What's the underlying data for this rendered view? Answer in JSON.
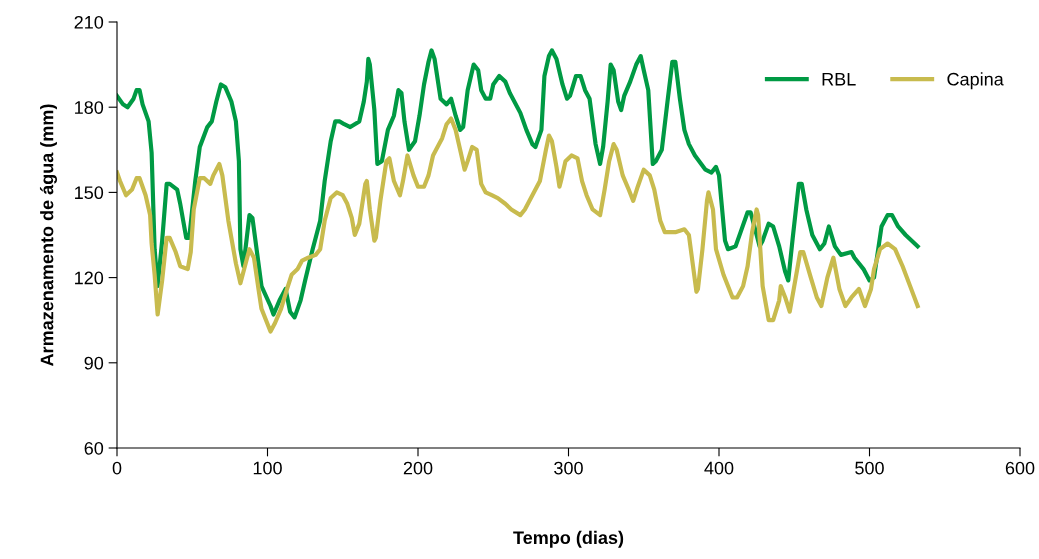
{
  "chart_data": {
    "type": "line",
    "xlabel": "Tempo (dias)",
    "ylabel": "Armazenamento de água (mm)",
    "xlim": [
      0,
      600
    ],
    "xticks": [
      0,
      100,
      200,
      300,
      400,
      500,
      600
    ],
    "ylim": [
      60,
      210
    ],
    "yticks": [
      60,
      90,
      120,
      150,
      180,
      210
    ],
    "grid": false,
    "legend": "top right",
    "marker": "none",
    "line_style": "solid",
    "series": [
      {
        "name": "RBL",
        "color": "#009a44",
        "x": [
          0,
          4,
          7,
          11,
          13,
          15,
          17,
          21,
          23,
          25,
          27,
          30,
          33,
          35,
          40,
          42,
          46,
          48,
          52,
          55,
          60,
          63,
          66,
          69,
          72,
          76,
          79,
          81,
          82,
          84,
          86,
          88,
          90,
          93,
          96,
          102,
          104,
          108,
          112,
          115,
          118,
          122,
          125,
          130,
          135,
          138,
          142,
          145,
          148,
          151,
          155,
          158,
          161,
          164,
          166,
          167,
          168,
          171,
          173,
          176,
          180,
          184,
          187,
          189,
          191,
          194,
          198,
          201,
          204,
          207,
          209,
          211,
          215,
          219,
          222,
          225,
          228,
          230,
          233,
          237,
          240,
          242,
          245,
          248,
          250,
          254,
          258,
          261,
          268,
          272,
          276,
          278,
          282,
          284,
          287,
          289,
          292,
          296,
          299,
          301,
          305,
          308,
          311,
          314,
          318,
          321,
          323,
          326,
          328,
          330,
          333,
          335,
          337,
          341,
          345,
          348,
          350,
          353,
          356,
          358,
          362,
          366,
          369,
          371,
          374,
          377,
          380,
          384,
          391,
          395,
          398,
          400,
          404,
          406,
          411,
          415,
          419,
          421,
          424,
          427,
          429,
          433,
          436,
          440,
          444,
          446,
          449,
          453,
          455,
          458,
          462,
          467,
          470,
          473,
          477,
          481,
          488,
          490,
          496,
          500,
          503,
          508,
          512,
          515,
          519,
          524,
          532
        ],
        "values": [
          184,
          181,
          180,
          183,
          186,
          186,
          181,
          175,
          164,
          130,
          117,
          133,
          153,
          153,
          151,
          146,
          134,
          134,
          154,
          166,
          173,
          175,
          182,
          188,
          187,
          182,
          175,
          161,
          130,
          124,
          133,
          142,
          141,
          129,
          117,
          110,
          107,
          112,
          116,
          108,
          106,
          112,
          119,
          130,
          140,
          154,
          168,
          175,
          175,
          174,
          173,
          174,
          175,
          182,
          189,
          197,
          195,
          179,
          160,
          161,
          172,
          177,
          186,
          185,
          175,
          165,
          168,
          177,
          188,
          196,
          200,
          197,
          183,
          181,
          183,
          177,
          172,
          173,
          186,
          195,
          193,
          186,
          183,
          183,
          188,
          191,
          189,
          185,
          178,
          172,
          167,
          166,
          172,
          191,
          198,
          200,
          197,
          188,
          183,
          184,
          191,
          191,
          186,
          183,
          167,
          160,
          166,
          182,
          195,
          193,
          182,
          179,
          184,
          189,
          195,
          198,
          193,
          186,
          160,
          161,
          165,
          183,
          196,
          196,
          183,
          172,
          167,
          163,
          158,
          157,
          159,
          156,
          133,
          130,
          131,
          137,
          143,
          143,
          137,
          131,
          133,
          139,
          138,
          131,
          122,
          119,
          134,
          153,
          153,
          144,
          135,
          130,
          132,
          138,
          131,
          128,
          129,
          127,
          123,
          119,
          120,
          138,
          142,
          142,
          138,
          135,
          131
        ]
      },
      {
        "name": "Capina",
        "color": "#c8bb4e",
        "x": [
          0,
          2,
          6,
          10,
          13,
          15,
          19,
          22,
          23,
          25,
          27,
          30,
          33,
          35,
          39,
          42,
          47,
          49,
          51,
          55,
          58,
          62,
          64,
          68,
          70,
          74,
          79,
          82,
          86,
          88,
          91,
          94,
          96,
          102,
          105,
          109,
          113,
          116,
          120,
          123,
          127,
          132,
          135,
          138,
          142,
          146,
          150,
          153,
          156,
          158,
          161,
          165,
          166,
          168,
          171,
          172,
          175,
          179,
          181,
          184,
          188,
          190,
          193,
          197,
          200,
          204,
          207,
          210,
          212,
          215,
          216,
          219,
          222,
          225,
          228,
          231,
          233,
          236,
          239,
          242,
          245,
          249,
          253,
          258,
          262,
          268,
          271,
          276,
          281,
          285,
          287,
          289,
          292,
          294,
          295,
          298,
          302,
          306,
          309,
          312,
          316,
          321,
          324,
          327,
          330,
          332,
          336,
          340,
          343,
          346,
          350,
          354,
          357,
          361,
          364,
          371,
          377,
          380,
          383,
          385,
          386,
          389,
          392,
          393,
          396,
          398,
          403,
          409,
          412,
          416,
          419,
          422,
          425,
          426,
          429,
          433,
          436,
          440,
          441,
          444,
          447,
          450,
          454,
          456,
          461,
          465,
          468,
          472,
          476,
          480,
          484,
          488,
          493,
          497,
          501,
          503,
          507,
          512,
          517,
          522,
          527,
          532
        ],
        "values": [
          157,
          154,
          149,
          151,
          155,
          155,
          149,
          142,
          132,
          121,
          107,
          119,
          134,
          134,
          129,
          124,
          123,
          129,
          144,
          155,
          155,
          153,
          156,
          160,
          156,
          140,
          125,
          118,
          126,
          130,
          127,
          116,
          109,
          101,
          104,
          109,
          116,
          121,
          123,
          126,
          127,
          128,
          130,
          140,
          148,
          150,
          149,
          146,
          141,
          135,
          139,
          153,
          154,
          144,
          133,
          134,
          147,
          161,
          162,
          154,
          149,
          154,
          163,
          156,
          152,
          152,
          156,
          163,
          165,
          168,
          169,
          174,
          176,
          172,
          165,
          158,
          161,
          166,
          165,
          153,
          150,
          149,
          148,
          146,
          144,
          142,
          144,
          149,
          154,
          165,
          170,
          168,
          159,
          152,
          154,
          161,
          163,
          162,
          154,
          149,
          144,
          142,
          151,
          161,
          167,
          165,
          156,
          151,
          147,
          152,
          158,
          156,
          151,
          140,
          136,
          136,
          137,
          135,
          123,
          115,
          116,
          130,
          147,
          150,
          144,
          130,
          121,
          113,
          113,
          117,
          124,
          136,
          144,
          142,
          117,
          105,
          105,
          112,
          117,
          113,
          108,
          117,
          129,
          129,
          120,
          113,
          110,
          120,
          127,
          116,
          110,
          113,
          116,
          110,
          116,
          123,
          130,
          132,
          130,
          124,
          117,
          110
        ]
      }
    ]
  }
}
